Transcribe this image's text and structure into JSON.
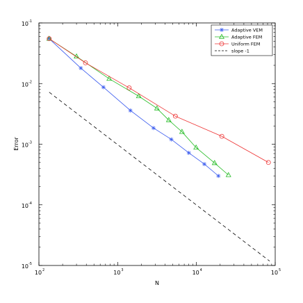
{
  "chart_data": {
    "type": "line",
    "xscale": "log",
    "yscale": "log",
    "xlim": [
      100,
      100000
    ],
    "ylim": [
      1e-05,
      0.1
    ],
    "xlabel": "N",
    "ylabel": "Error",
    "title": "",
    "grid": false,
    "legend_position": "top-right",
    "x_ticks": [
      {
        "value": 100,
        "base": "10",
        "exp": "2"
      },
      {
        "value": 1000,
        "base": "10",
        "exp": "3"
      },
      {
        "value": 10000,
        "base": "10",
        "exp": "4"
      },
      {
        "value": 100000,
        "base": "10",
        "exp": "5"
      }
    ],
    "y_ticks": [
      {
        "value": 1e-05,
        "base": "10",
        "exp": "-5"
      },
      {
        "value": 0.0001,
        "base": "10",
        "exp": "-4"
      },
      {
        "value": 0.001,
        "base": "10",
        "exp": "-3"
      },
      {
        "value": 0.01,
        "base": "10",
        "exp": "-2"
      },
      {
        "value": 0.1,
        "base": "10",
        "exp": "-1"
      }
    ],
    "series": [
      {
        "name": "Adaptive VEM",
        "color": "#3355ee",
        "marker": "star",
        "dash": "",
        "x": [
          135,
          340,
          660,
          1450,
          2850,
          4800,
          8000,
          12600,
          19000
        ],
        "y": [
          0.055,
          0.018,
          0.0087,
          0.0036,
          0.00185,
          0.0012,
          0.00072,
          0.00047,
          0.0003
        ]
      },
      {
        "name": "Adaptive FEM",
        "color": "#22bb22",
        "marker": "triangle",
        "dash": "",
        "x": [
          135,
          300,
          780,
          1850,
          3150,
          4450,
          6550,
          9900,
          17000,
          25500
        ],
        "y": [
          0.055,
          0.028,
          0.012,
          0.0062,
          0.0039,
          0.0025,
          0.0016,
          0.00088,
          0.00049,
          0.00031
        ]
      },
      {
        "name": "Uniform FEM",
        "color": "#ee3333",
        "marker": "circle",
        "dash": "",
        "x": [
          135,
          390,
          1400,
          5400,
          21000,
          82000
        ],
        "y": [
          0.055,
          0.022,
          0.0085,
          0.0029,
          0.00135,
          0.0005
        ]
      },
      {
        "name": "slope -1",
        "color": "#000000",
        "marker": "none",
        "dash": "5,4",
        "x": [
          135,
          85000
        ],
        "y": [
          0.0072,
          1.18e-05
        ]
      }
    ]
  }
}
